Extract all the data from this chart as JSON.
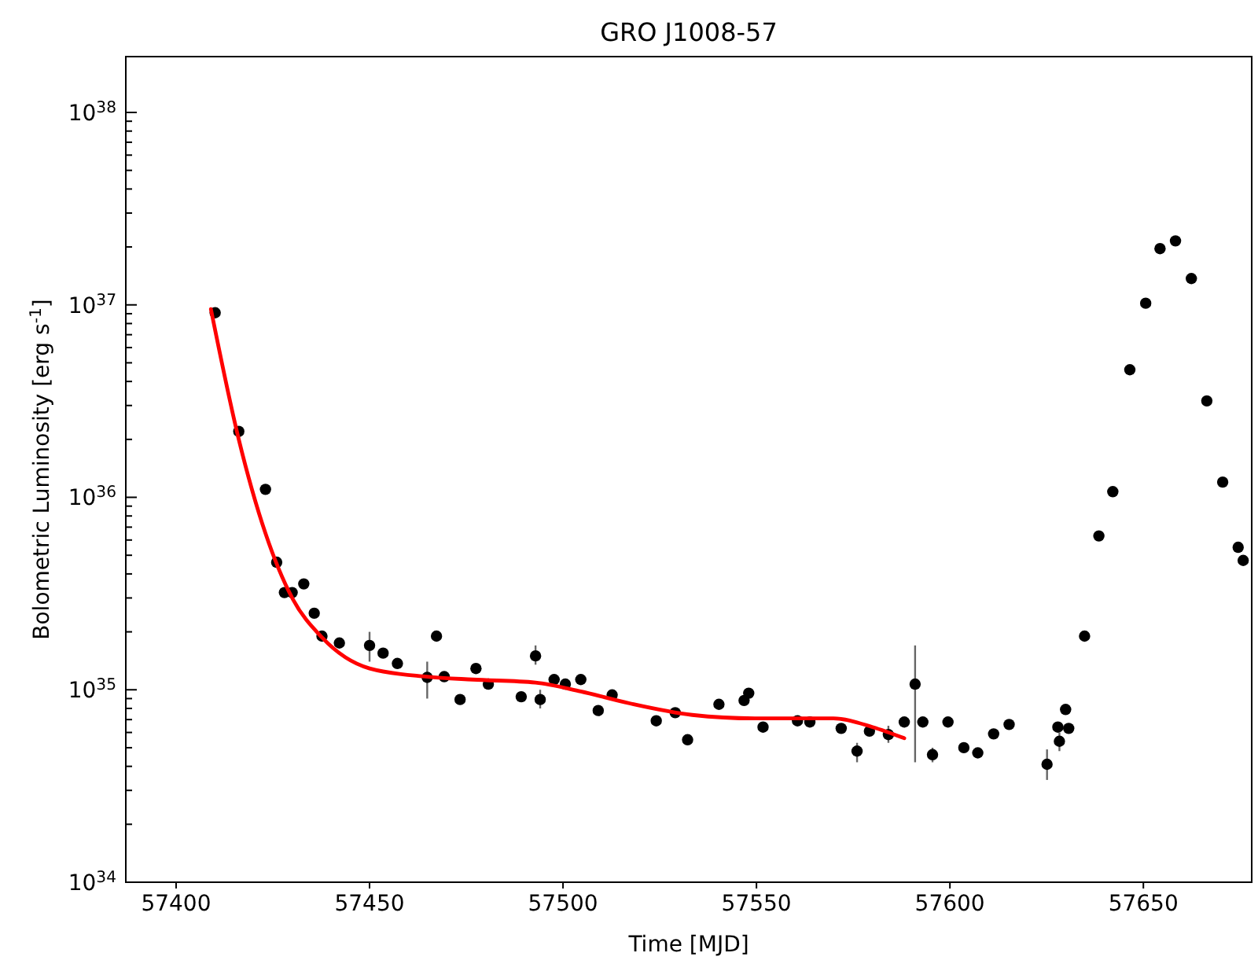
{
  "chart_data": {
    "type": "scatter",
    "title": "GRO J1008-57",
    "xlabel": "Time [MJD]",
    "ylabel": "Bolometric Luminosity [erg s$^{-1}$]",
    "log": "y",
    "marker": "circle",
    "xlim": [
      57387,
      57678
    ],
    "xticks": [
      57400,
      57450,
      57500,
      57550,
      57600,
      57650
    ],
    "ylim": [
      1e+34,
      1.95e+38
    ],
    "yticks": [
      {
        "value": 1e+34,
        "label": "10$^{34}$"
      },
      {
        "value": 1e+35,
        "label": "10$^{35}$"
      },
      {
        "value": 1e+36,
        "label": "10$^{36}$"
      },
      {
        "value": 1e+37,
        "label": "10$^{37}$"
      },
      {
        "value": 1e+38,
        "label": "10$^{38}$"
      },
      {
        "value": 2e+34,
        "label": null
      },
      {
        "value": 3e+34,
        "label": null
      },
      {
        "value": 4e+34,
        "label": null
      },
      {
        "value": 5e+34,
        "label": null
      },
      {
        "value": 6e+34,
        "label": null
      },
      {
        "value": 7e+34,
        "label": null
      },
      {
        "value": 8e+34,
        "label": null
      },
      {
        "value": 9e+34,
        "label": null
      },
      {
        "value": 2e+35,
        "label": null
      },
      {
        "value": 3e+35,
        "label": null
      },
      {
        "value": 4e+35,
        "label": null
      },
      {
        "value": 5e+35,
        "label": null
      },
      {
        "value": 6e+35,
        "label": null
      },
      {
        "value": 7e+35,
        "label": null
      },
      {
        "value": 8e+35,
        "label": null
      },
      {
        "value": 9e+35,
        "label": null
      },
      {
        "value": 2e+36,
        "label": null
      },
      {
        "value": 3e+36,
        "label": null
      },
      {
        "value": 4e+36,
        "label": null
      },
      {
        "value": 5e+36,
        "label": null
      },
      {
        "value": 6e+36,
        "label": null
      },
      {
        "value": 7e+36,
        "label": null
      },
      {
        "value": 8e+36,
        "label": null
      },
      {
        "value": 9e+36,
        "label": null
      },
      {
        "value": 2e+37,
        "label": null
      },
      {
        "value": 3e+37,
        "label": null
      },
      {
        "value": 4e+37,
        "label": null
      },
      {
        "value": 5e+37,
        "label": null
      },
      {
        "value": 6e+37,
        "label": null
      },
      {
        "value": 7e+37,
        "label": null
      },
      {
        "value": 8e+37,
        "label": null
      },
      {
        "value": 9e+37,
        "label": null
      }
    ],
    "series": [
      {
        "color": "#000000",
        "x": [
          57410.1,
          57416.2,
          57423.1,
          57426,
          57428,
          57430,
          57433,
          57435.7,
          57437.7,
          57442.2,
          57450,
          57453.5,
          57457.2,
          57464.9,
          57467.3,
          57469.3,
          57473.4,
          57477.5,
          57480.7,
          57489.2,
          57492.9,
          57494.1,
          57497.7,
          57500.6,
          57504.6,
          57509.1,
          57512.7,
          57524.1,
          57529,
          57532.2,
          57540.3,
          57546.8,
          57548,
          57551.7,
          57560.6,
          57563.8,
          57571.9,
          57576,
          57579.2,
          57584.1,
          57588.2,
          57591,
          57593,
          57595.5,
          57599.5,
          57603.6,
          57607.2,
          57611.3,
          57615.3,
          57625.1,
          57627.9,
          57628.3,
          57629.9,
          57630.7,
          57634.8,
          57638.5,
          57642.1,
          57646.5,
          57650.6,
          57654.3,
          57658.3,
          57662.4,
          57666.4,
          57670.5,
          57674.5,
          57675.8
        ],
        "values": [
          9.1e+36,
          2.2e+36,
          1.1e+36,
          4.6e+35,
          3.2e+35,
          3.2e+35,
          3.55e+35,
          2.5e+35,
          1.9e+35,
          1.75e+35,
          1.7e+35,
          1.55e+35,
          1.37e+35,
          1.16e+35,
          1.9e+35,
          1.17e+35,
          8.9e+34,
          1.29e+35,
          1.07e+35,
          9.2e+34,
          1.5e+35,
          8.9e+34,
          1.13e+35,
          1.07e+35,
          1.13e+35,
          7.8e+34,
          9.4e+34,
          6.9e+34,
          7.6e+34,
          5.5e+34,
          8.4e+34,
          8.8e+34,
          9.6e+34,
          6.4e+34,
          6.9e+34,
          6.8e+34,
          6.3e+34,
          4.8e+34,
          6.1e+34,
          5.85e+34,
          6.8e+34,
          1.07e+35,
          6.8e+34,
          4.6e+34,
          6.8e+34,
          5e+34,
          4.7e+34,
          5.9e+34,
          6.6e+34,
          4.1e+34,
          6.4e+34,
          5.4e+34,
          7.9e+34,
          6.3e+34,
          1.9e+35,
          6.3e+35,
          1.07e+36,
          4.6e+36,
          1.02e+37,
          1.96e+37,
          2.15e+37,
          1.37e+37,
          3.17e+36,
          1.2e+36,
          5.5e+35,
          4.7e+35
        ],
        "errors": [
          null,
          null,
          null,
          null,
          null,
          null,
          null,
          null,
          null,
          null,
          [
            1.4e+35,
            2e+35
          ],
          null,
          null,
          [
            9e+34,
            1.4e+35
          ],
          null,
          null,
          null,
          null,
          null,
          null,
          [
            1.35e+35,
            1.7e+35
          ],
          [
            8e+34,
            1e+35
          ],
          null,
          null,
          null,
          null,
          null,
          null,
          null,
          null,
          null,
          null,
          null,
          null,
          null,
          null,
          null,
          [
            4.2e+34,
            5.3e+34
          ],
          null,
          [
            5.3e+34,
            6.5e+34
          ],
          null,
          [
            4.2e+34,
            1.7e+35
          ],
          null,
          [
            4.2e+34,
            5e+34
          ],
          null,
          null,
          null,
          null,
          null,
          [
            3.4e+34,
            4.9e+34
          ],
          null,
          [
            4.8e+34,
            6e+34
          ],
          null,
          null,
          null,
          null,
          null,
          null,
          null,
          null,
          null,
          null,
          null,
          null,
          null,
          null
        ]
      },
      {
        "type": "line",
        "color": "#ff0000",
        "marker": "none",
        "x": [
          57409,
          57416.2,
          57423.1,
          57430,
          57437.7,
          57450,
          57464.9,
          57476.6,
          57492.9,
          57504.6,
          57517.2,
          57533.4,
          57549.6,
          57569.9,
          57580,
          57588.2
        ],
        "values": [
          9.5e+36,
          2e+36,
          6.5e+35,
          3e+35,
          1.87e+35,
          1.29e+35,
          1.17e+35,
          1.13e+35,
          1.09e+35,
          9.8e+34,
          8.5e+34,
          7.4e+34,
          7.1e+34,
          7.1e+34,
          6.4e+34,
          5.6e+34
        ]
      }
    ]
  }
}
